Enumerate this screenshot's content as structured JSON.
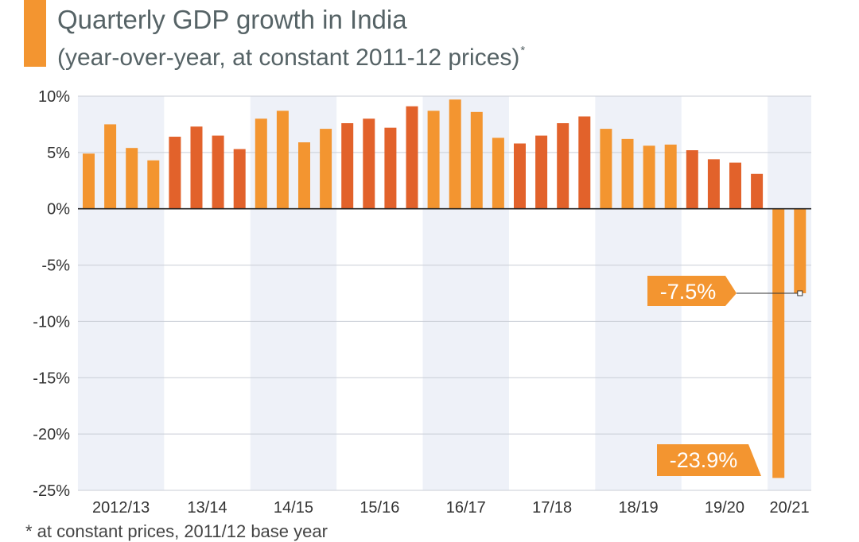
{
  "header": {
    "title": "Quarterly GDP growth in India",
    "subtitle": "(year-over-year, at constant 2011-12 prices)",
    "subtitle_mark": "*"
  },
  "footnote": "* at constant prices, 2011/12 base year",
  "colors": {
    "accent": "#F39530",
    "bar_light": "#F39530",
    "bar_dark": "#E2622B",
    "band": "#EEF1F8",
    "grid": "#C9CED6",
    "zero_line": "#222222",
    "annotation_bg": "#F39530",
    "annotation_text": "#FFFFFF"
  },
  "chart_data": {
    "type": "bar",
    "title": "Quarterly GDP growth in India",
    "subtitle": "(year-over-year, at constant 2011-12 prices)*",
    "ylim": [
      -25,
      10
    ],
    "yticks": [
      10,
      5,
      0,
      -5,
      -10,
      -15,
      -20,
      -25
    ],
    "ytick_labels": [
      "10%",
      "5%",
      "0%",
      "-5%",
      "-10%",
      "-15%",
      "-20%",
      "-25%"
    ],
    "grid": true,
    "groups": [
      {
        "label": "2012/13",
        "values": [
          4.9,
          7.5,
          5.4,
          4.3
        ],
        "shaded": true,
        "tone": "light"
      },
      {
        "label": "13/14",
        "values": [
          6.4,
          7.3,
          6.5,
          5.3
        ],
        "shaded": false,
        "tone": "dark"
      },
      {
        "label": "14/15",
        "values": [
          8.0,
          8.7,
          5.9,
          7.1
        ],
        "shaded": true,
        "tone": "light"
      },
      {
        "label": "15/16",
        "values": [
          7.6,
          8.0,
          7.2,
          9.1
        ],
        "shaded": false,
        "tone": "dark"
      },
      {
        "label": "16/17",
        "values": [
          8.7,
          9.7,
          8.6,
          6.3
        ],
        "shaded": true,
        "tone": "light"
      },
      {
        "label": "17/18",
        "values": [
          5.8,
          6.5,
          7.6,
          8.2
        ],
        "shaded": false,
        "tone": "dark"
      },
      {
        "label": "18/19",
        "values": [
          7.1,
          6.2,
          5.6,
          5.7
        ],
        "shaded": true,
        "tone": "light"
      },
      {
        "label": "19/20",
        "values": [
          5.2,
          4.4,
          4.1,
          3.1
        ],
        "shaded": false,
        "tone": "dark"
      },
      {
        "label": "20/21",
        "values": [
          -23.9,
          -7.5
        ],
        "shaded": true,
        "tone": "light"
      }
    ],
    "annotations": [
      {
        "text": "-7.5%",
        "value": -7.5,
        "group": 8,
        "bar": 1
      },
      {
        "text": "-23.9%",
        "value": -23.9,
        "group": 8,
        "bar": 0
      }
    ]
  }
}
